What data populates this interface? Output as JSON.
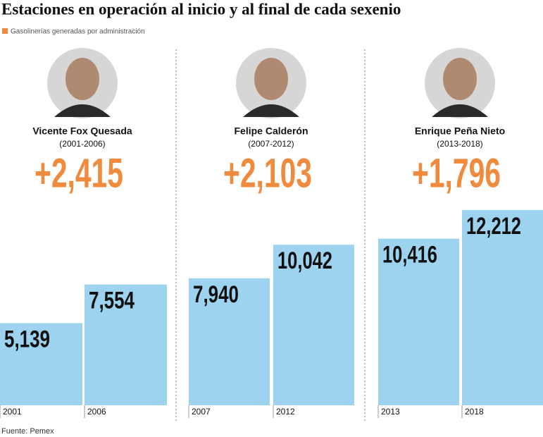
{
  "title": "Estaciones en operación al inicio y al final de cada sexenio",
  "legend": {
    "label": "Gasolinerías generadas por administración",
    "color": "#f08a3c"
  },
  "source": "Fuente: Pemex",
  "chart_data": [
    {
      "type": "bar",
      "title": "Vicente Fox Quesada",
      "subtitle": "(2001-2006)",
      "annotation": "+2,415",
      "categories": [
        "2001",
        "2006"
      ],
      "values": [
        5139,
        7554
      ],
      "value_labels": [
        "5,139",
        "7,554"
      ],
      "color": "#9dd3ee"
    },
    {
      "type": "bar",
      "title": "Felipe Calderón",
      "subtitle": "(2007-2012)",
      "annotation": "+2,103",
      "categories": [
        "2007",
        "2012"
      ],
      "values": [
        7940,
        10042
      ],
      "value_labels": [
        "7,940",
        "10,042"
      ],
      "color": "#9dd3ee"
    },
    {
      "type": "bar",
      "title": "Enrique Peña Nieto",
      "subtitle": "(2013-2018)",
      "annotation": "+1,796",
      "categories": [
        "2013",
        "2018"
      ],
      "values": [
        10416,
        12212
      ],
      "value_labels": [
        "10,416",
        "12,212"
      ],
      "color": "#9dd3ee"
    }
  ]
}
